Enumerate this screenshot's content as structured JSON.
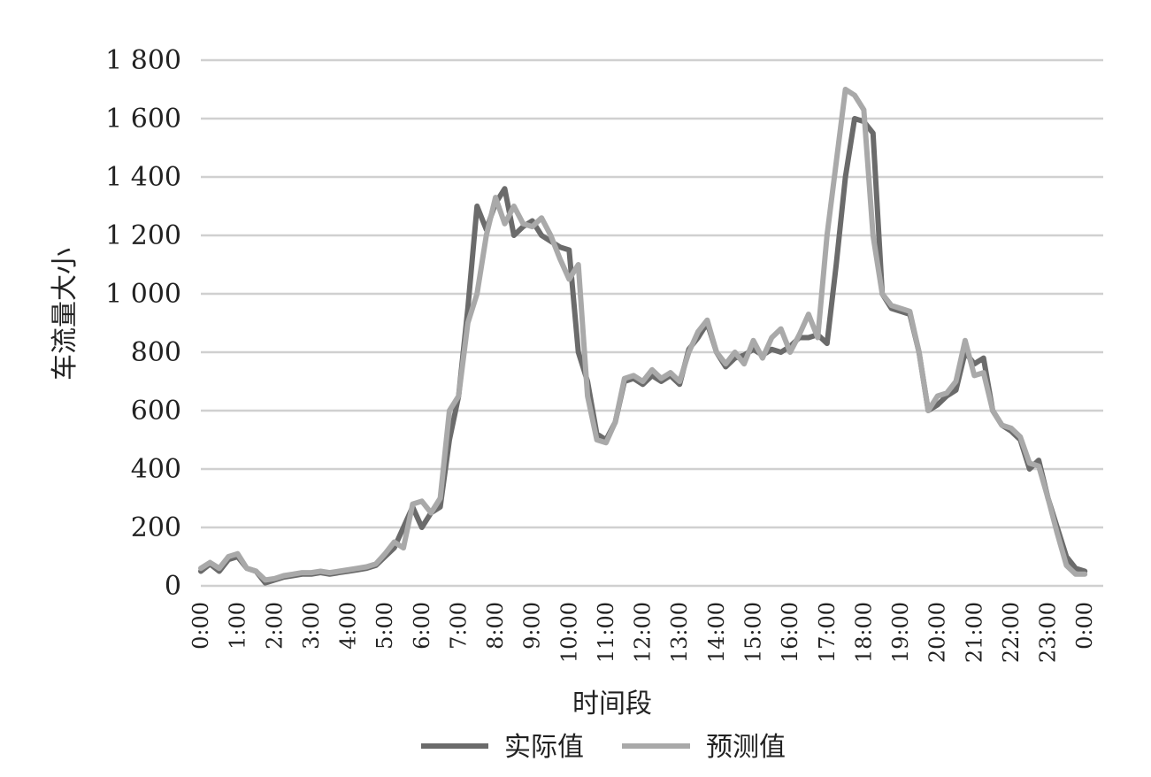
{
  "chart_data": {
    "type": "line",
    "xlabel": "时间段",
    "ylabel": "车流量大小",
    "ylim": [
      0,
      1800
    ],
    "yticks": [
      0,
      200,
      400,
      600,
      800,
      1000,
      1200,
      1400,
      1600,
      1800
    ],
    "ytick_labels": [
      "0",
      "200",
      "400",
      "600",
      "800",
      "1 000",
      "1 200",
      "1 400",
      "1 600",
      "1 800"
    ],
    "x_range": [
      0,
      24.5
    ],
    "xticks": [
      0,
      1,
      2,
      3,
      4,
      5,
      6,
      7,
      8,
      9,
      10,
      11,
      12,
      13,
      14,
      15,
      16,
      17,
      18,
      19,
      20,
      21,
      22,
      23,
      24
    ],
    "xtick_labels": [
      "0:00",
      "1:00",
      "2:00",
      "3:00",
      "4:00",
      "5:00",
      "6:00",
      "7:00",
      "8:00",
      "9:00",
      "10:00",
      "11:00",
      "12:00",
      "13:00",
      "14:00",
      "15:00",
      "16:00",
      "17:00",
      "18:00",
      "19:00",
      "20:00",
      "21:00",
      "22:00",
      "23:00",
      "0:00"
    ],
    "grid": true,
    "legend_position": "bottom",
    "colors": {
      "actual": "#6b6b6b",
      "predicted": "#a9a9a9",
      "grid": "#d0d0d0"
    },
    "series": [
      {
        "name": "实际值",
        "color": "#6b6b6b",
        "points": [
          [
            0,
            50
          ],
          [
            0.25,
            75
          ],
          [
            0.5,
            50
          ],
          [
            0.75,
            90
          ],
          [
            1,
            100
          ],
          [
            1.25,
            60
          ],
          [
            1.5,
            50
          ],
          [
            1.75,
            10
          ],
          [
            2,
            20
          ],
          [
            2.25,
            30
          ],
          [
            2.5,
            35
          ],
          [
            2.75,
            40
          ],
          [
            3,
            40
          ],
          [
            3.25,
            45
          ],
          [
            3.5,
            40
          ],
          [
            3.75,
            45
          ],
          [
            4,
            50
          ],
          [
            4.25,
            55
          ],
          [
            4.5,
            60
          ],
          [
            4.75,
            70
          ],
          [
            5,
            100
          ],
          [
            5.25,
            130
          ],
          [
            5.5,
            200
          ],
          [
            5.75,
            270
          ],
          [
            6,
            200
          ],
          [
            6.25,
            250
          ],
          [
            6.5,
            270
          ],
          [
            6.75,
            500
          ],
          [
            7,
            650
          ],
          [
            7.25,
            950
          ],
          [
            7.5,
            1300
          ],
          [
            7.75,
            1220
          ],
          [
            8,
            1310
          ],
          [
            8.25,
            1360
          ],
          [
            8.5,
            1200
          ],
          [
            8.75,
            1230
          ],
          [
            9,
            1250
          ],
          [
            9.25,
            1200
          ],
          [
            9.5,
            1180
          ],
          [
            9.75,
            1160
          ],
          [
            10,
            1150
          ],
          [
            10.25,
            800
          ],
          [
            10.5,
            700
          ],
          [
            10.75,
            520
          ],
          [
            11,
            500
          ],
          [
            11.25,
            560
          ],
          [
            11.5,
            700
          ],
          [
            11.75,
            710
          ],
          [
            12,
            690
          ],
          [
            12.25,
            720
          ],
          [
            12.5,
            700
          ],
          [
            12.75,
            720
          ],
          [
            13,
            690
          ],
          [
            13.25,
            810
          ],
          [
            13.5,
            850
          ],
          [
            13.75,
            900
          ],
          [
            14,
            800
          ],
          [
            14.25,
            750
          ],
          [
            14.5,
            780
          ],
          [
            14.75,
            790
          ],
          [
            15,
            810
          ],
          [
            15.25,
            790
          ],
          [
            15.5,
            810
          ],
          [
            15.75,
            800
          ],
          [
            16,
            820
          ],
          [
            16.25,
            850
          ],
          [
            16.5,
            850
          ],
          [
            16.75,
            860
          ],
          [
            17,
            830
          ],
          [
            17.25,
            1100
          ],
          [
            17.5,
            1400
          ],
          [
            17.75,
            1600
          ],
          [
            18,
            1590
          ],
          [
            18.25,
            1550
          ],
          [
            18.5,
            1000
          ],
          [
            18.75,
            950
          ],
          [
            19,
            940
          ],
          [
            19.25,
            930
          ],
          [
            19.5,
            800
          ],
          [
            19.75,
            600
          ],
          [
            20,
            620
          ],
          [
            20.25,
            650
          ],
          [
            20.5,
            670
          ],
          [
            20.75,
            800
          ],
          [
            21,
            760
          ],
          [
            21.25,
            780
          ],
          [
            21.5,
            600
          ],
          [
            21.75,
            550
          ],
          [
            22,
            530
          ],
          [
            22.25,
            500
          ],
          [
            22.5,
            400
          ],
          [
            22.75,
            430
          ],
          [
            23,
            300
          ],
          [
            23.25,
            200
          ],
          [
            23.5,
            100
          ],
          [
            23.75,
            60
          ],
          [
            24,
            50
          ]
        ]
      },
      {
        "name": "预测值",
        "color": "#a9a9a9",
        "points": [
          [
            0,
            60
          ],
          [
            0.25,
            80
          ],
          [
            0.5,
            60
          ],
          [
            0.75,
            100
          ],
          [
            1,
            110
          ],
          [
            1.25,
            60
          ],
          [
            1.5,
            50
          ],
          [
            1.75,
            20
          ],
          [
            2,
            25
          ],
          [
            2.25,
            35
          ],
          [
            2.5,
            40
          ],
          [
            2.75,
            45
          ],
          [
            3,
            45
          ],
          [
            3.25,
            50
          ],
          [
            3.5,
            45
          ],
          [
            3.75,
            50
          ],
          [
            4,
            55
          ],
          [
            4.25,
            60
          ],
          [
            4.5,
            65
          ],
          [
            4.75,
            75
          ],
          [
            5,
            110
          ],
          [
            5.25,
            150
          ],
          [
            5.5,
            130
          ],
          [
            5.75,
            280
          ],
          [
            6,
            290
          ],
          [
            6.25,
            250
          ],
          [
            6.5,
            300
          ],
          [
            6.75,
            600
          ],
          [
            7,
            650
          ],
          [
            7.25,
            900
          ],
          [
            7.5,
            1000
          ],
          [
            7.75,
            1200
          ],
          [
            8,
            1330
          ],
          [
            8.25,
            1240
          ],
          [
            8.5,
            1300
          ],
          [
            8.75,
            1240
          ],
          [
            9,
            1230
          ],
          [
            9.25,
            1260
          ],
          [
            9.5,
            1200
          ],
          [
            9.75,
            1120
          ],
          [
            10,
            1050
          ],
          [
            10.25,
            1100
          ],
          [
            10.5,
            650
          ],
          [
            10.75,
            500
          ],
          [
            11,
            490
          ],
          [
            11.25,
            560
          ],
          [
            11.5,
            710
          ],
          [
            11.75,
            720
          ],
          [
            12,
            700
          ],
          [
            12.25,
            740
          ],
          [
            12.5,
            710
          ],
          [
            12.75,
            730
          ],
          [
            13,
            700
          ],
          [
            13.25,
            800
          ],
          [
            13.5,
            870
          ],
          [
            13.75,
            910
          ],
          [
            14,
            800
          ],
          [
            14.25,
            760
          ],
          [
            14.5,
            800
          ],
          [
            14.75,
            760
          ],
          [
            15,
            840
          ],
          [
            15.25,
            780
          ],
          [
            15.5,
            850
          ],
          [
            15.75,
            880
          ],
          [
            16,
            800
          ],
          [
            16.25,
            860
          ],
          [
            16.5,
            930
          ],
          [
            16.75,
            850
          ],
          [
            17,
            1200
          ],
          [
            17.25,
            1450
          ],
          [
            17.5,
            1700
          ],
          [
            17.75,
            1680
          ],
          [
            18,
            1630
          ],
          [
            18.25,
            1200
          ],
          [
            18.5,
            1000
          ],
          [
            18.75,
            960
          ],
          [
            19,
            950
          ],
          [
            19.25,
            940
          ],
          [
            19.5,
            800
          ],
          [
            19.75,
            600
          ],
          [
            20,
            650
          ],
          [
            20.25,
            660
          ],
          [
            20.5,
            700
          ],
          [
            20.75,
            840
          ],
          [
            21,
            720
          ],
          [
            21.25,
            730
          ],
          [
            21.5,
            600
          ],
          [
            21.75,
            550
          ],
          [
            22,
            540
          ],
          [
            22.25,
            510
          ],
          [
            22.5,
            420
          ],
          [
            22.75,
            410
          ],
          [
            23,
            300
          ],
          [
            23.25,
            180
          ],
          [
            23.5,
            70
          ],
          [
            23.75,
            40
          ],
          [
            24,
            40
          ]
        ]
      }
    ]
  },
  "legend": {
    "items": [
      {
        "label": "实际值",
        "color": "#6b6b6b"
      },
      {
        "label": "预测值",
        "color": "#a9a9a9"
      }
    ]
  }
}
